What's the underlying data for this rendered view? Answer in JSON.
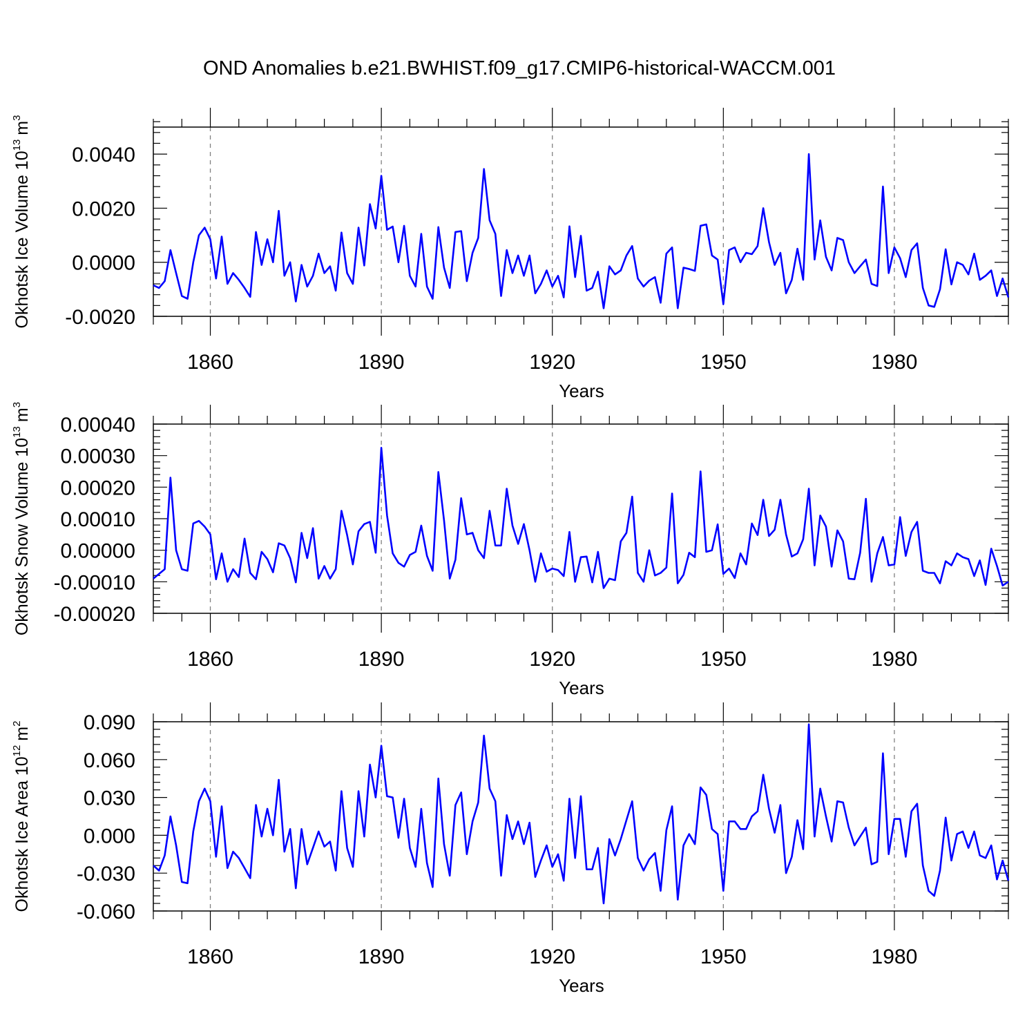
{
  "title": "OND Anomalies b.e21.BWHIST.f09_g17.CMIP6-historical-WACCM.001",
  "colors": {
    "line": "#0000ff",
    "axis": "#000000",
    "refline": "#808080"
  },
  "chart_data": [
    {
      "type": "line",
      "name": "ice-volume",
      "ylabel_text": "Okhotsk Ice Volume 10",
      "ylabel_exp": "13",
      "ylabel_unit": "m",
      "ylabel_unit_exp": "3",
      "xlabel": "Years",
      "x_start": 1850,
      "x_end": 2000,
      "xlim": [
        1850,
        2000
      ],
      "ylim": [
        -0.002,
        0.005
      ],
      "yticks": [
        -0.002,
        0.0,
        0.002,
        0.004
      ],
      "ytick_labels": [
        "-0.0020",
        "0.0000",
        "0.0020",
        "0.0040"
      ],
      "xticks": [
        1860,
        1890,
        1920,
        1950,
        1980
      ],
      "xtick_labels": [
        "1860",
        "1890",
        "1920",
        "1950",
        "1980"
      ],
      "values": [
        -0.00085,
        -0.00095,
        -0.0007,
        0.00045,
        -0.0004,
        -0.00125,
        -0.00135,
        0.0,
        0.001,
        0.00128,
        0.00085,
        -0.0006,
        0.00095,
        -0.0008,
        -0.0004,
        -0.00065,
        -0.00095,
        -0.00128,
        0.00112,
        -0.0001,
        0.00085,
        0.0,
        0.0019,
        -0.0005,
        0.0,
        -0.00145,
        -0.0001,
        -0.0009,
        -0.0005,
        0.00032,
        -0.0004,
        -0.00015,
        -0.00105,
        0.0011,
        -0.0004,
        -0.0008,
        0.00128,
        -0.00012,
        0.00215,
        0.00125,
        0.0032,
        0.0012,
        0.00132,
        0.0,
        0.00135,
        -0.0005,
        -0.0009,
        0.00105,
        -0.0009,
        -0.00135,
        0.0013,
        -0.0002,
        -0.00095,
        0.00112,
        0.00115,
        -0.0007,
        0.00035,
        0.0009,
        0.00345,
        0.00155,
        0.00105,
        -0.00125,
        0.00045,
        -0.0004,
        0.00025,
        -0.0005,
        0.00025,
        -0.00115,
        -0.0008,
        -0.0003,
        -0.0009,
        -0.0005,
        -0.0013,
        0.00133,
        -0.00055,
        0.00098,
        -0.00105,
        -0.00095,
        -0.00035,
        -0.0017,
        -0.00015,
        -0.00045,
        -0.0003,
        0.00025,
        0.0006,
        -0.0006,
        -0.0009,
        -0.00068,
        -0.00055,
        -0.0015,
        0.00032,
        0.00055,
        -0.0017,
        -0.0002,
        -0.00025,
        -0.00032,
        0.00135,
        0.0014,
        0.00025,
        0.0001,
        -0.00155,
        0.00045,
        0.00055,
        0.0,
        0.00035,
        0.0003,
        0.0006,
        0.002,
        0.00075,
        -0.0001,
        0.00035,
        -0.00115,
        -0.00065,
        0.0005,
        -0.00065,
        0.004,
        0.0001,
        0.00155,
        0.0002,
        -0.0003,
        0.0009,
        0.00082,
        0.0,
        -0.0004,
        -0.00015,
        0.0001,
        -0.0008,
        -0.00088,
        0.0028,
        -0.0004,
        0.00055,
        0.00015,
        -0.00055,
        0.00045,
        0.0007,
        -0.00095,
        -0.0016,
        -0.00165,
        -0.001,
        0.00048,
        -0.00082,
        0.0,
        -0.0001,
        -0.00045,
        0.00032,
        -0.00065,
        -0.0005,
        -0.0003,
        -0.00125,
        -0.0006,
        -0.0013
      ]
    },
    {
      "type": "line",
      "name": "snow-volume",
      "ylabel_text": "Okhotsk Snow Volume 10",
      "ylabel_exp": "13",
      "ylabel_unit": "m",
      "ylabel_unit_exp": "3",
      "xlabel": "Years",
      "x_start": 1850,
      "x_end": 2000,
      "xlim": [
        1850,
        2000
      ],
      "ylim": [
        -0.0002,
        0.0004
      ],
      "yticks": [
        -0.0002,
        -0.0001,
        0.0,
        0.0001,
        0.0002,
        0.0003,
        0.0004
      ],
      "ytick_labels": [
        "-0.00020",
        "-0.00010",
        "0.00000",
        "0.00010",
        "0.00020",
        "0.00030",
        "0.00040"
      ],
      "xticks": [
        1860,
        1890,
        1920,
        1950,
        1980
      ],
      "xtick_labels": [
        "1860",
        "1890",
        "1920",
        "1950",
        "1980"
      ],
      "values": [
        -9e-05,
        -7.5e-05,
        -6e-05,
        0.00023,
        0.0,
        -6e-05,
        -6.5e-05,
        8.5e-05,
        9.3e-05,
        7.5e-05,
        5e-05,
        -9.2e-05,
        -1e-05,
        -0.0001,
        -6e-05,
        -8.5e-05,
        3.7e-05,
        -7.2e-05,
        -9.2e-05,
        -5e-06,
        -2.8e-05,
        -7e-05,
        2.2e-05,
        1.5e-05,
        -2.5e-05,
        -0.000102,
        5.5e-05,
        -2.5e-05,
        7e-05,
        -9e-05,
        -5e-05,
        -9e-05,
        -6e-05,
        0.000125,
        4.8e-05,
        -4.5e-05,
        6e-05,
        8.3e-05,
        9e-05,
        -8e-06,
        0.000325,
        0.00011,
        -1e-05,
        -4e-05,
        -5.2e-05,
        -1.5e-05,
        -5e-06,
        7.8e-05,
        -1.8e-05,
        -6.5e-05,
        0.000248,
        9.5e-05,
        -9e-05,
        -3e-05,
        0.000165,
        5e-05,
        5.5e-05,
        0.0,
        -2.5e-05,
        0.000125,
        1.5e-05,
        1.5e-05,
        0.000195,
        7.8e-05,
        2e-05,
        8.3e-05,
        0.0,
        -0.0001,
        -1e-05,
        -6.8e-05,
        -5.8e-05,
        -6.3e-05,
        -8.2e-05,
        5.8e-05,
        -0.0001,
        -2.2e-05,
        -2e-05,
        -0.000102,
        -5e-06,
        -0.00012,
        -9e-05,
        -9.5e-05,
        2.8e-05,
        5.5e-05,
        0.00017,
        -7.2e-05,
        -0.0001,
        0.0,
        -8e-05,
        -7.2e-05,
        -5.5e-05,
        0.00018,
        -0.000105,
        -7.8e-05,
        -8e-06,
        -2.2e-05,
        0.00025,
        -5e-06,
        0.0,
        8.2e-05,
        -7.5e-05,
        -5.8e-05,
        -8.8e-05,
        -1e-05,
        -4.5e-05,
        8.5e-05,
        4.8e-05,
        0.00016,
        4.5e-05,
        6.5e-05,
        0.00016,
        5e-05,
        -2e-05,
        -1e-05,
        3.5e-05,
        0.000195,
        -4.8e-05,
        0.00011,
        7.5e-05,
        -5.2e-05,
        6.3e-05,
        2.8e-05,
        -9e-05,
        -9.2e-05,
        -8e-06,
        0.000163,
        -0.0001,
        -1e-05,
        4.2e-05,
        -4.8e-05,
        -4.5e-05,
        0.000105,
        -1.8e-05,
        5.8e-05,
        9e-05,
        -6.5e-05,
        -7.2e-05,
        -7.2e-05,
        -0.000105,
        -3.5e-05,
        -4.8e-05,
        -1e-05,
        -2.2e-05,
        -2.8e-05,
        -8.2e-05,
        -3.2e-05,
        -0.00011,
        5e-06,
        -5e-05,
        -0.000112,
        -0.0001
      ]
    },
    {
      "type": "line",
      "name": "ice-area",
      "ylabel_text": "Okhotsk Ice Area 10",
      "ylabel_exp": "12",
      "ylabel_unit": "m",
      "ylabel_unit_exp": "2",
      "xlabel": "Years",
      "x_start": 1850,
      "x_end": 2000,
      "xlim": [
        1850,
        2000
      ],
      "ylim": [
        -0.06,
        0.09
      ],
      "yticks": [
        -0.06,
        -0.03,
        0.0,
        0.03,
        0.06,
        0.09
      ],
      "ytick_labels": [
        "-0.060",
        "-0.030",
        "0.000",
        "0.030",
        "0.060",
        "0.090"
      ],
      "xticks": [
        1860,
        1890,
        1920,
        1950,
        1980
      ],
      "xtick_labels": [
        "1860",
        "1890",
        "1920",
        "1950",
        "1980"
      ],
      "values": [
        -0.024,
        -0.028,
        -0.016,
        0.015,
        -0.008,
        -0.037,
        -0.038,
        0.003,
        0.027,
        0.037,
        0.027,
        -0.017,
        0.023,
        -0.026,
        -0.013,
        -0.018,
        -0.026,
        -0.034,
        0.024,
        -0.001,
        0.021,
        0.0,
        0.044,
        -0.013,
        0.005,
        -0.042,
        0.005,
        -0.023,
        -0.01,
        0.003,
        -0.009,
        -0.005,
        -0.028,
        0.035,
        -0.01,
        -0.025,
        0.035,
        -0.001,
        0.056,
        0.03,
        0.071,
        0.031,
        0.03,
        -0.002,
        0.029,
        -0.01,
        -0.025,
        0.021,
        -0.022,
        -0.041,
        0.045,
        -0.007,
        -0.032,
        0.024,
        0.034,
        -0.015,
        0.011,
        0.026,
        0.079,
        0.037,
        0.027,
        -0.032,
        0.016,
        -0.003,
        0.011,
        -0.007,
        0.01,
        -0.033,
        -0.02,
        -0.008,
        -0.025,
        -0.015,
        -0.036,
        0.029,
        -0.018,
        0.031,
        -0.027,
        -0.027,
        -0.01,
        -0.054,
        -0.003,
        -0.016,
        -0.003,
        0.012,
        0.027,
        -0.018,
        -0.028,
        -0.019,
        -0.014,
        -0.044,
        0.004,
        0.023,
        -0.051,
        -0.008,
        0.001,
        -0.007,
        0.038,
        0.032,
        0.005,
        0.001,
        -0.044,
        0.011,
        0.011,
        0.005,
        0.005,
        0.015,
        0.019,
        0.048,
        0.021,
        0.002,
        0.024,
        -0.03,
        -0.017,
        0.012,
        -0.011,
        0.088,
        -0.001,
        0.037,
        0.015,
        -0.005,
        0.027,
        0.026,
        0.006,
        -0.008,
        -0.001,
        0.006,
        -0.023,
        -0.021,
        0.065,
        -0.015,
        0.013,
        0.013,
        -0.017,
        0.019,
        0.025,
        -0.024,
        -0.044,
        -0.048,
        -0.028,
        0.014,
        -0.02,
        0.001,
        0.003,
        -0.01,
        0.003,
        -0.016,
        -0.018,
        -0.008,
        -0.035,
        -0.02,
        -0.036
      ]
    }
  ]
}
